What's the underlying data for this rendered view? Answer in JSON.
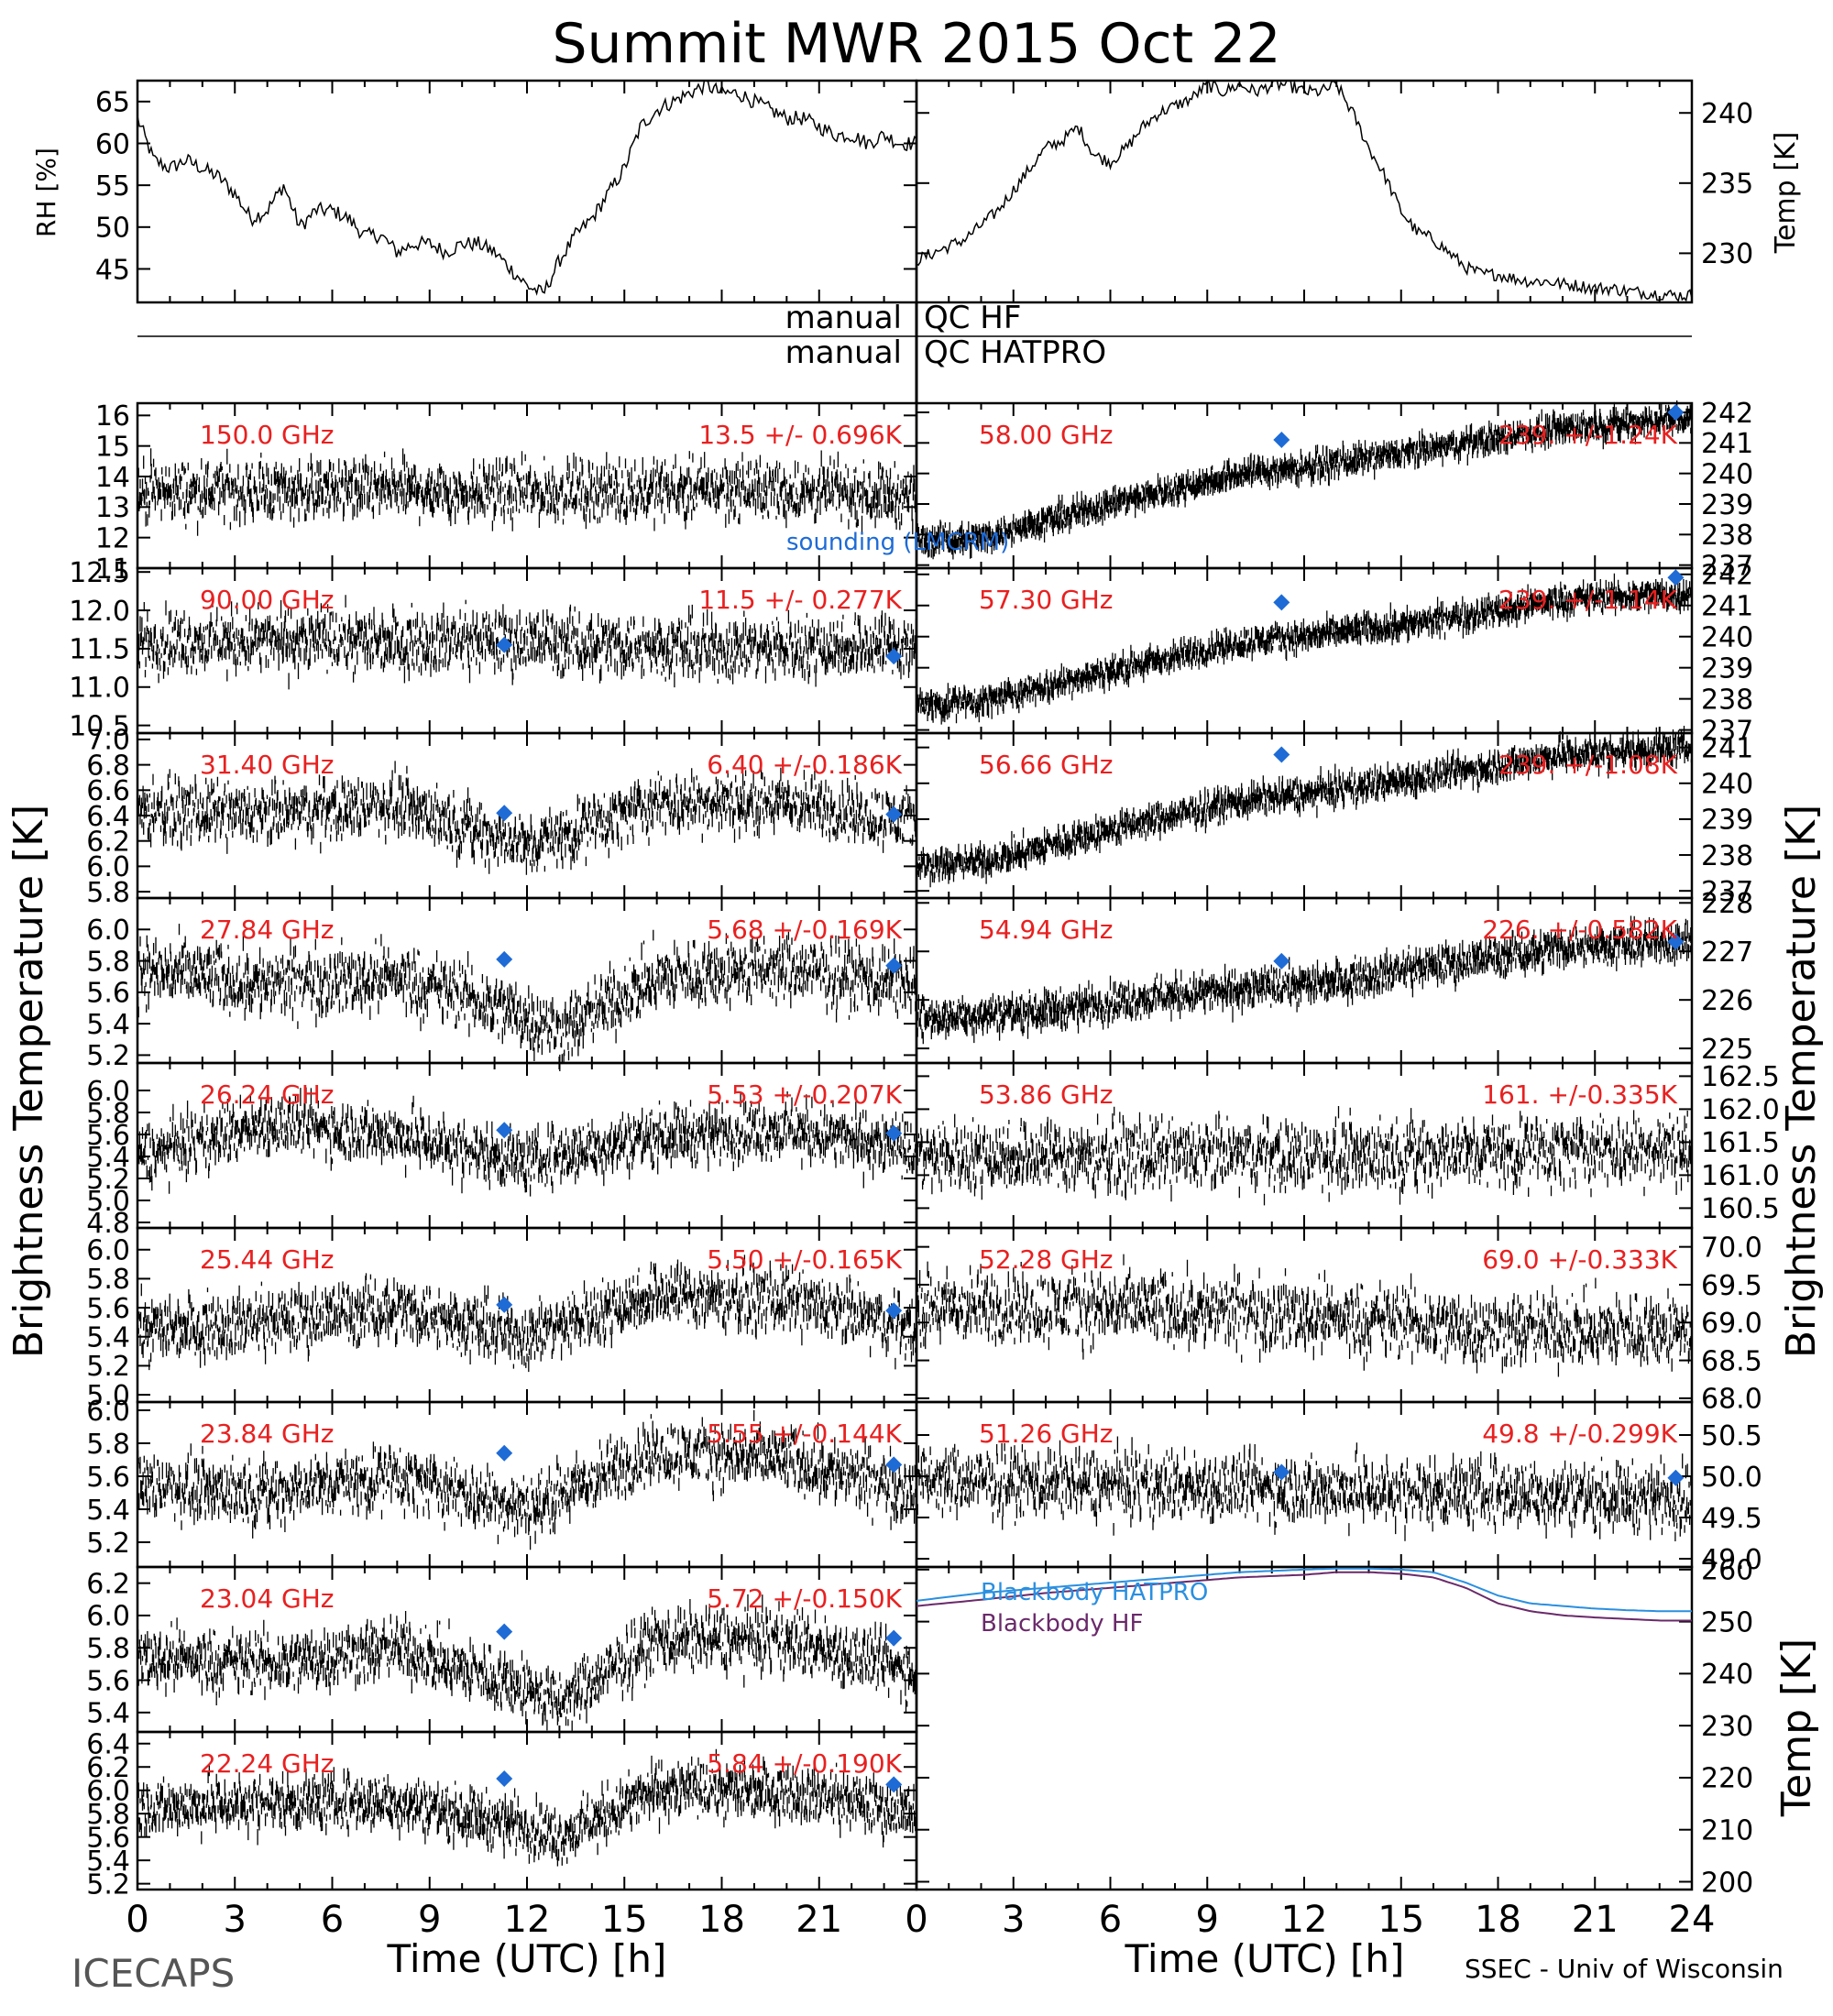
{
  "title": "Summit MWR 2015 Oct 22",
  "footer": {
    "left": "ICECAPS",
    "right": "SSEC - Univ of Wisconsin",
    "xlabel": "Time (UTC) [h]"
  },
  "qc": {
    "hf": "QC HF",
    "hatpro": "QC HATPRO",
    "manual": "manual"
  },
  "axis_labels": {
    "rh": "RH [%]",
    "temp_top": "Temp [K]",
    "tb_left": "Brightness Temperature [K]",
    "tb_right": "Brightness Temperature [K]",
    "temp_bb": "Temp [K]"
  },
  "legend": {
    "sounding": "sounding (LMCRM)",
    "bb_hatpro": "Blackbody HATPRO",
    "bb_hf": "Blackbody HF"
  },
  "colors": {
    "sounding": "#1e6bd6",
    "hatpro": "#2a8fe0",
    "hf": "#6a2a6a",
    "label": "#e82020"
  },
  "chart_data": [
    {
      "type": "line",
      "name": "rh",
      "x_ticks": [
        "0",
        "3",
        "6",
        "9",
        "12",
        "15",
        "18",
        "21"
      ],
      "y_ticks": [
        "45",
        "50",
        "55",
        "60",
        "65"
      ],
      "ylim": [
        41,
        67.5
      ],
      "x": [
        0,
        0.5,
        1,
        1.5,
        2,
        2.5,
        3,
        3.5,
        4,
        4.5,
        5,
        5.5,
        6,
        6.5,
        7,
        7.5,
        8,
        8.5,
        9,
        9.5,
        10,
        10.5,
        11,
        11.5,
        12,
        12.5,
        13,
        13.5,
        14,
        14.5,
        15,
        15.5,
        16,
        16.5,
        17,
        17.5,
        18,
        18.5,
        19,
        19.5,
        20,
        20.5,
        21,
        21.5,
        22,
        22.5,
        23,
        23.5,
        24
      ],
      "y": [
        63,
        58,
        57,
        58,
        57,
        56,
        54,
        51,
        52,
        55,
        50,
        52,
        52,
        51,
        49,
        49,
        47,
        48,
        48,
        47,
        48,
        48,
        47,
        45,
        43,
        42,
        46,
        49,
        51,
        54,
        57,
        62,
        64,
        65,
        66,
        67,
        66,
        66,
        65,
        64,
        63,
        63,
        62,
        61,
        61,
        60,
        61,
        60,
        60
      ]
    },
    {
      "type": "line",
      "name": "temp",
      "x_ticks": [],
      "y_ticks": [
        "230",
        "235",
        "240"
      ],
      "ylim": [
        226.5,
        242.3
      ],
      "x": [
        0,
        0.5,
        1,
        1.5,
        2,
        2.5,
        3,
        3.5,
        4,
        4.5,
        5,
        5.5,
        6,
        6.5,
        7,
        7.5,
        8,
        8.5,
        9,
        9.5,
        10,
        10.5,
        11,
        11.5,
        12,
        12.5,
        13,
        13.5,
        14,
        14.5,
        15,
        15.5,
        16,
        16.5,
        17,
        17.5,
        18,
        18.5,
        19,
        19.5,
        20,
        20.5,
        21,
        21.5,
        22,
        22.5,
        23,
        23.5,
        24
      ],
      "y": [
        229.5,
        230,
        230.5,
        231,
        232,
        233,
        234.5,
        236,
        237.5,
        238,
        239,
        237,
        236.5,
        237.5,
        239,
        240,
        240.5,
        241,
        242,
        241.5,
        242,
        241.5,
        242,
        242,
        241.5,
        241.5,
        242,
        240,
        237.5,
        235.5,
        233,
        231.5,
        231,
        230,
        229,
        228.5,
        228.5,
        228.2,
        228,
        228,
        227.8,
        227.7,
        227.5,
        227.5,
        227.3,
        227.2,
        227.1,
        227,
        227
      ]
    },
    {
      "type": "scatter",
      "name": "150.0 GHz",
      "label": "150.0 GHz",
      "stat": "13.5 +/- 0.696K",
      "side": "left",
      "row": 0,
      "y_ticks": [
        "11",
        "12",
        "13",
        "14",
        "15",
        "16"
      ],
      "ylim": [
        11,
        16.4
      ],
      "trend_x": [
        0,
        6,
        12,
        18,
        24
      ],
      "trend_y": [
        13.5,
        13.6,
        13.5,
        13.6,
        13.4
      ],
      "noise": 0.9,
      "sounding_x": [],
      "sounding_y": []
    },
    {
      "type": "scatter",
      "name": "90.00 GHz",
      "label": "90.00 GHz",
      "stat": "11.5 +/- 0.277K",
      "side": "left",
      "row": 1,
      "y_ticks": [
        "10.5",
        "11.0",
        "11.5",
        "12.0",
        "12.5"
      ],
      "ylim": [
        10.4,
        12.55
      ],
      "trend_x": [
        0,
        6,
        12,
        18,
        24
      ],
      "trend_y": [
        11.6,
        11.6,
        11.6,
        11.5,
        11.55
      ],
      "noise": 0.38,
      "sounding_x": [
        11.3,
        23.3
      ],
      "sounding_y": [
        11.55,
        11.4
      ]
    },
    {
      "type": "scatter",
      "name": "31.40 GHz",
      "label": "31.40 GHz",
      "stat": "6.40 +/-0.186K",
      "side": "left",
      "row": 2,
      "y_ticks": [
        "5.8",
        "6.0",
        "6.2",
        "6.4",
        "6.6",
        "6.8",
        "7.0"
      ],
      "ylim": [
        5.75,
        7.05
      ],
      "trend_x": [
        0,
        4,
        8,
        12,
        16,
        20,
        24
      ],
      "trend_y": [
        6.45,
        6.4,
        6.5,
        6.15,
        6.5,
        6.5,
        6.35
      ],
      "noise": 0.22,
      "sounding_x": [
        11.3,
        23.3
      ],
      "sounding_y": [
        6.42,
        6.41
      ]
    },
    {
      "type": "scatter",
      "name": "27.84 GHz",
      "label": "27.84 GHz",
      "stat": "5.68 +/-0.169K",
      "side": "left",
      "row": 3,
      "y_ticks": [
        "5.2",
        "5.4",
        "5.6",
        "5.8",
        "6.0"
      ],
      "ylim": [
        5.15,
        6.2
      ],
      "trend_x": [
        0,
        4,
        8,
        12,
        13,
        16,
        20,
        24
      ],
      "trend_y": [
        5.75,
        5.65,
        5.7,
        5.45,
        5.35,
        5.7,
        5.75,
        5.65
      ],
      "noise": 0.2,
      "sounding_x": [
        11.3,
        23.3
      ],
      "sounding_y": [
        5.81,
        5.77
      ]
    },
    {
      "type": "scatter",
      "name": "26.24 GHz",
      "label": "26.24 GHz",
      "stat": "5.53 +/-0.207K",
      "side": "left",
      "row": 4,
      "y_ticks": [
        "4.8",
        "5.0",
        "5.2",
        "5.4",
        "5.6",
        "5.8",
        "6.0"
      ],
      "ylim": [
        4.75,
        6.25
      ],
      "trend_x": [
        0,
        4,
        8,
        12,
        16,
        20,
        24
      ],
      "trend_y": [
        5.4,
        5.7,
        5.6,
        5.35,
        5.6,
        5.65,
        5.45
      ],
      "noise": 0.25,
      "sounding_x": [
        11.3,
        23.3
      ],
      "sounding_y": [
        5.64,
        5.61
      ]
    },
    {
      "type": "scatter",
      "name": "25.44 GHz",
      "label": "25.44 GHz",
      "stat": "5.50 +/-0.165K",
      "side": "left",
      "row": 5,
      "y_ticks": [
        "5.0",
        "5.2",
        "5.4",
        "5.6",
        "5.8",
        "6.0"
      ],
      "ylim": [
        4.95,
        6.15
      ],
      "trend_x": [
        0,
        4,
        8,
        12,
        16,
        20,
        24
      ],
      "trend_y": [
        5.45,
        5.5,
        5.6,
        5.4,
        5.7,
        5.65,
        5.45
      ],
      "noise": 0.2,
      "sounding_x": [
        11.3,
        23.3
      ],
      "sounding_y": [
        5.62,
        5.58
      ]
    },
    {
      "type": "scatter",
      "name": "23.84 GHz",
      "label": "23.84 GHz",
      "stat": "5.55 +/-0.144K",
      "side": "left",
      "row": 6,
      "y_ticks": [
        "5.2",
        "5.4",
        "5.6",
        "5.8",
        "6.0"
      ],
      "ylim": [
        5.05,
        6.05
      ],
      "trend_x": [
        0,
        4,
        8,
        12,
        16,
        20,
        24
      ],
      "trend_y": [
        5.55,
        5.5,
        5.6,
        5.4,
        5.75,
        5.7,
        5.5
      ],
      "noise": 0.18,
      "sounding_x": [
        11.3,
        23.3
      ],
      "sounding_y": [
        5.74,
        5.67
      ]
    },
    {
      "type": "scatter",
      "name": "23.04 GHz",
      "label": "23.04 GHz",
      "stat": "5.72 +/-0.150K",
      "side": "left",
      "row": 7,
      "y_ticks": [
        "5.4",
        "5.6",
        "5.8",
        "6.0",
        "6.2"
      ],
      "ylim": [
        5.28,
        6.3
      ],
      "trend_x": [
        0,
        4,
        8,
        12,
        13,
        16,
        20,
        24
      ],
      "trend_y": [
        5.75,
        5.7,
        5.8,
        5.55,
        5.45,
        5.85,
        5.85,
        5.65
      ],
      "noise": 0.18,
      "sounding_x": [
        11.3,
        23.3
      ],
      "sounding_y": [
        5.9,
        5.86
      ]
    },
    {
      "type": "scatter",
      "name": "22.24 GHz",
      "label": "22.24 GHz",
      "stat": "5.84 +/-0.190K",
      "side": "left",
      "row": 8,
      "y_ticks": [
        "5.2",
        "5.4",
        "5.6",
        "5.8",
        "6.0",
        "6.2",
        "6.4"
      ],
      "ylim": [
        5.15,
        6.5
      ],
      "trend_x": [
        0,
        4,
        8,
        12,
        13,
        16,
        20,
        24
      ],
      "trend_y": [
        5.85,
        5.9,
        5.9,
        5.7,
        5.6,
        6.0,
        6.0,
        5.8
      ],
      "noise": 0.22,
      "sounding_x": [
        11.3,
        23.3
      ],
      "sounding_y": [
        6.1,
        6.05
      ]
    },
    {
      "type": "scatter",
      "name": "58.00 GHz",
      "label": "58.00 GHz",
      "stat": "239. +/-1.24K",
      "side": "right",
      "row": 0,
      "y_ticks": [
        "237",
        "238",
        "239",
        "240",
        "241",
        "242"
      ],
      "ylim": [
        236.9,
        242.3
      ],
      "trend_x": [
        0,
        2,
        6,
        10,
        12,
        16,
        20,
        24
      ],
      "trend_y": [
        237.8,
        237.9,
        239,
        240,
        240.2,
        240.8,
        241.5,
        241.8
      ],
      "noise": 0.4,
      "sounding_x": [
        11.3,
        23.5
      ],
      "sounding_y": [
        241.1,
        242.0
      ]
    },
    {
      "type": "scatter",
      "name": "57.30 GHz",
      "label": "57.30 GHz",
      "stat": "239. +/-1.14K",
      "side": "right",
      "row": 1,
      "y_ticks": [
        "237",
        "238",
        "239",
        "240",
        "241",
        "242"
      ],
      "ylim": [
        236.9,
        242.2
      ],
      "trend_x": [
        0,
        2,
        6,
        10,
        12,
        16,
        20,
        24
      ],
      "trend_y": [
        237.8,
        237.9,
        238.9,
        239.8,
        240,
        240.5,
        241.2,
        241.4
      ],
      "noise": 0.4,
      "sounding_x": [
        11.3,
        23.5
      ],
      "sounding_y": [
        241.1,
        241.9
      ]
    },
    {
      "type": "scatter",
      "name": "56.66 GHz",
      "label": "56.66 GHz",
      "stat": "239. +/-1.08K",
      "side": "right",
      "row": 2,
      "y_ticks": [
        "237",
        "238",
        "239",
        "240",
        "241"
      ],
      "ylim": [
        236.8,
        241.4
      ],
      "trend_x": [
        0,
        2,
        6,
        10,
        12,
        16,
        20,
        24
      ],
      "trend_y": [
        237.7,
        237.8,
        238.7,
        239.5,
        239.7,
        240.2,
        240.8,
        241
      ],
      "noise": 0.38,
      "sounding_x": [
        11.3
      ],
      "sounding_y": [
        240.8
      ]
    },
    {
      "type": "scatter",
      "name": "54.94 GHz",
      "label": "54.94 GHz",
      "stat": "226. +/-0.582K",
      "side": "right",
      "row": 3,
      "y_ticks": [
        "225",
        "226",
        "227",
        "228"
      ],
      "ylim": [
        224.7,
        228.1
      ],
      "trend_x": [
        0,
        4,
        8,
        12,
        16,
        20,
        24
      ],
      "trend_y": [
        225.6,
        225.8,
        226.1,
        226.3,
        226.7,
        227.1,
        227.2
      ],
      "noise": 0.35,
      "sounding_x": [
        11.3,
        23.5
      ],
      "sounding_y": [
        226.8,
        227.2
      ]
    },
    {
      "type": "scatter",
      "name": "53.86 GHz",
      "label": "53.86 GHz",
      "stat": "161. +/-0.335K",
      "side": "right",
      "row": 4,
      "y_ticks": [
        "160.5",
        "161.0",
        "161.5",
        "162.0",
        "162.5"
      ],
      "ylim": [
        160.2,
        162.7
      ],
      "trend_x": [
        0,
        12,
        24
      ],
      "trend_y": [
        161.3,
        161.3,
        161.4
      ],
      "noise": 0.5,
      "sounding_x": [],
      "sounding_y": []
    },
    {
      "type": "scatter",
      "name": "52.28 GHz",
      "label": "52.28 GHz",
      "stat": "69.0 +/-0.333K",
      "side": "right",
      "row": 5,
      "y_ticks": [
        "68.0",
        "68.5",
        "69.0",
        "69.5",
        "70.0"
      ],
      "ylim": [
        67.95,
        70.25
      ],
      "trend_x": [
        0,
        6,
        12,
        18,
        24
      ],
      "trend_y": [
        69.2,
        69.2,
        69.1,
        68.9,
        68.9
      ],
      "noise": 0.45,
      "sounding_x": [],
      "sounding_y": []
    },
    {
      "type": "scatter",
      "name": "51.26 GHz",
      "label": "51.26 GHz",
      "stat": "49.8 +/-0.299K",
      "side": "right",
      "row": 6,
      "y_ticks": [
        "49.0",
        "49.5",
        "50.0",
        "50.5"
      ],
      "ylim": [
        48.9,
        50.9
      ],
      "trend_x": [
        0,
        6,
        12,
        18,
        24
      ],
      "trend_y": [
        49.95,
        49.9,
        49.85,
        49.8,
        49.75
      ],
      "noise": 0.38,
      "sounding_x": [
        11.3,
        23.5
      ],
      "sounding_y": [
        50.05,
        49.98
      ]
    },
    {
      "type": "line",
      "name": "blackbody",
      "x_ticks": [
        "0",
        "3",
        "6",
        "9",
        "12",
        "15",
        "18",
        "21",
        "24"
      ],
      "y_ticks": [
        "200",
        "210",
        "220",
        "230",
        "240",
        "250",
        "260"
      ],
      "ylim": [
        198.5,
        260.5
      ],
      "series": [
        {
          "name": "Blackbody HATPRO",
          "x": [
            0,
            2,
            4,
            6,
            8,
            10,
            12,
            13,
            14,
            15,
            16,
            17,
            18,
            19,
            20,
            21,
            22,
            23,
            24
          ],
          "y": [
            254,
            255.5,
            256.5,
            257.5,
            258.5,
            259.5,
            260,
            260.2,
            260.2,
            260,
            259.5,
            257.5,
            255,
            253.5,
            253,
            252.5,
            252.2,
            252,
            252
          ]
        },
        {
          "name": "Blackbody HF",
          "x": [
            0,
            2,
            4,
            6,
            8,
            10,
            12,
            13,
            14,
            15,
            16,
            17,
            18,
            19,
            20,
            21,
            22,
            23,
            24
          ],
          "y": [
            253,
            254.2,
            255.5,
            256.5,
            257.5,
            258.5,
            259,
            259.5,
            259.5,
            259.2,
            258.5,
            256.5,
            253.5,
            252,
            251.2,
            250.8,
            250.5,
            250.2,
            250.2
          ]
        }
      ]
    }
  ]
}
